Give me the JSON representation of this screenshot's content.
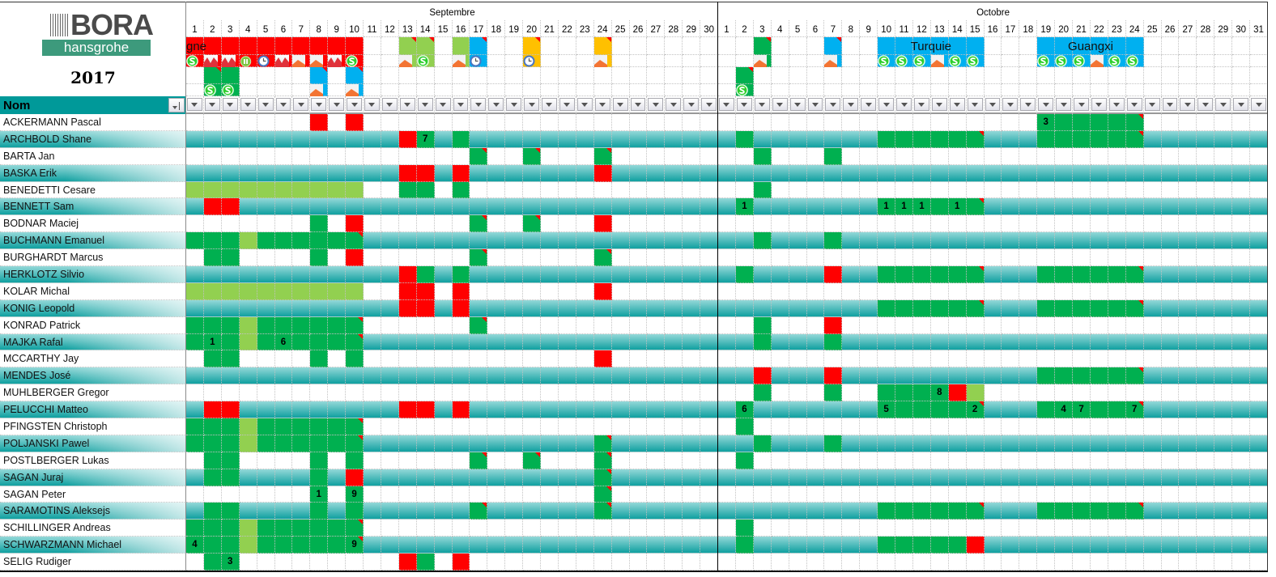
{
  "logo": {
    "brand": "BORA",
    "sub": "hansgrohe"
  },
  "year": "2017",
  "months": [
    {
      "key": "sep",
      "label": "Septembre",
      "days": 30
    },
    {
      "key": "oct",
      "label": "Octobre",
      "days": 31
    }
  ],
  "column_header": "Nom",
  "colors": {
    "G": "#00b050",
    "L": "#92d050",
    "R": "#ff0000",
    "B": "#00b0f0",
    "Y": "#ffc000"
  },
  "lanes": [
    {
      "type": "bar",
      "sep": [
        "R1-10",
        "l13-14",
        "L16",
        "b17",
        "y20",
        "y24"
      ],
      "oct": [
        "g3",
        "b7",
        "B10-15",
        "B19-24"
      ],
      "labels": [
        {
          "month": "sep",
          "from": 1,
          "to": 10,
          "text": "gne",
          "align": "left"
        },
        {
          "month": "oct",
          "from": 10,
          "to": 15,
          "text": "Turquie"
        },
        {
          "month": "oct",
          "from": 19,
          "to": 24,
          "text": "Guangxi"
        }
      ]
    },
    {
      "type": "icons",
      "sep": [
        "R1-10",
        "L13-14",
        "L16",
        "B17",
        "Y20",
        "Y24"
      ],
      "oct": [
        "G3",
        "B7",
        "B10-15",
        "B19-24"
      ],
      "icons": {
        "sep": {
          "1": "s-coin",
          "2": "mountain",
          "3": "mountain",
          "4": "pause",
          "5": "clock",
          "6": "mountain",
          "7": "hill",
          "8": "hill",
          "9": "mountain",
          "10": "s-coin",
          "13": "hill",
          "14": "s-coin",
          "16": "hill",
          "17": "clock",
          "20": "clock",
          "24": "hill"
        },
        "oct": {
          "3": "hill",
          "7": "hill",
          "10": "s-coin",
          "11": "s-coin",
          "12": "s-coin",
          "13": "hill",
          "14": "s-coin",
          "15": "s-coin",
          "19": "s-coin",
          "20": "s-coin",
          "21": "s-coin",
          "22": "hill",
          "23": "s-coin",
          "24": "s-coin"
        }
      }
    },
    {
      "type": "bar",
      "sep": [
        "g2",
        "G3",
        "b8",
        "b10"
      ],
      "oct": [
        "g2"
      ],
      "labels": []
    },
    {
      "type": "icons",
      "sep": [
        "G2-3",
        "B8",
        "B10"
      ],
      "oct": [
        "G2"
      ],
      "icons": {
        "sep": {
          "2": "s-coin",
          "3": "s-coin",
          "8": "hill",
          "10": "hill"
        },
        "oct": {
          "2": "s-coin"
        }
      }
    }
  ],
  "rows": [
    {
      "name": "ACKERMANN Pascal",
      "sep": [
        "R8",
        "R10"
      ],
      "oct": [
        "G19-23",
        "g24"
      ],
      "nums": {
        "oct": {
          "19": "3"
        }
      }
    },
    {
      "name": "ARCHBOLD Shane",
      "sep": [
        "R13",
        "G14",
        "G16"
      ],
      "oct": [
        "G2",
        "G10-14",
        "g15",
        "G19-23",
        "g24"
      ],
      "nums": {
        "sep": {
          "14": "7"
        }
      }
    },
    {
      "name": "BARTA Jan",
      "sep": [
        "g17",
        "g20",
        "g24"
      ],
      "oct": [
        "G3",
        "G7"
      ],
      "nums": {}
    },
    {
      "name": "BASKA Erik",
      "sep": [
        "R13-14",
        "R16",
        "R24"
      ],
      "oct": [],
      "nums": {}
    },
    {
      "name": "BENEDETTI Cesare",
      "sep": [
        "L1-10",
        "G13-14",
        "G16"
      ],
      "oct": [
        "G3"
      ],
      "nums": {}
    },
    {
      "name": "BENNETT Sam",
      "sep": [
        "R2-3"
      ],
      "oct": [
        "G2",
        "G10-14",
        "g15"
      ],
      "nums": {
        "oct": {
          "2": "1",
          "10": "1",
          "11": "1",
          "12": "1",
          "14": "1"
        }
      }
    },
    {
      "name": "BODNAR Maciej",
      "sep": [
        "G8",
        "R10",
        "g17",
        "g20",
        "R24"
      ],
      "oct": [],
      "nums": {}
    },
    {
      "name": "BUCHMANN Emanuel",
      "sep": [
        "G1-3",
        "L4",
        "G5-9",
        "g10"
      ],
      "oct": [
        "G3",
        "G7"
      ],
      "nums": {}
    },
    {
      "name": "BURGHARDT Marcus",
      "sep": [
        "G2-3",
        "G8",
        "R10",
        "g17",
        "g24"
      ],
      "oct": [],
      "nums": {}
    },
    {
      "name": "HERKLOTZ Silvio",
      "sep": [
        "R13",
        "G14",
        "G16"
      ],
      "oct": [
        "G2",
        "R7",
        "G10-14",
        "g15",
        "G19-23",
        "g24"
      ],
      "nums": {}
    },
    {
      "name": "KOLAR Michal",
      "sep": [
        "L1-10",
        "R13-14",
        "R16",
        "R24"
      ],
      "oct": [],
      "nums": {}
    },
    {
      "name": "KONIG Leopold",
      "sep": [
        "R13-14",
        "R16"
      ],
      "oct": [
        "G10-14",
        "g15",
        "G19-23",
        "g24"
      ],
      "nums": {}
    },
    {
      "name": "KONRAD Patrick",
      "sep": [
        "G1-3",
        "L4",
        "G5-9",
        "g10",
        "g17"
      ],
      "oct": [
        "G3",
        "R7"
      ],
      "nums": {}
    },
    {
      "name": "MAJKA Rafal",
      "sep": [
        "G1-3",
        "L4",
        "G5-9",
        "g10"
      ],
      "oct": [
        "G3",
        "G7"
      ],
      "nums": {
        "sep": {
          "2": "1",
          "6": "6"
        }
      }
    },
    {
      "name": "MCCARTHY Jay",
      "sep": [
        "G2-3",
        "G8",
        "G10",
        "R24"
      ],
      "oct": [],
      "nums": {}
    },
    {
      "name": "MENDES José",
      "sep": [],
      "oct": [
        "R3",
        "R7",
        "G19-23",
        "g24"
      ],
      "nums": {}
    },
    {
      "name": "MUHLBERGER Gregor",
      "sep": [],
      "oct": [
        "G3",
        "G7",
        "G10-13",
        "R14",
        "L15"
      ],
      "nums": {
        "oct": {
          "13": "8"
        }
      }
    },
    {
      "name": "PELUCCHI Matteo",
      "sep": [
        "R2-3",
        "R13-14",
        "R16"
      ],
      "oct": [
        "G2",
        "G10-14",
        "g15",
        "G19-23",
        "g24"
      ],
      "nums": {
        "oct": {
          "2": "6",
          "10": "5",
          "15": "2",
          "20": "4",
          "21": "7",
          "24": "7"
        }
      }
    },
    {
      "name": "PFINGSTEN Christoph",
      "sep": [
        "G1-3",
        "L4",
        "G5-9",
        "g10"
      ],
      "oct": [
        "G2"
      ],
      "nums": {}
    },
    {
      "name": "POLJANSKI Pawel",
      "sep": [
        "G1-3",
        "L4",
        "G5-9",
        "g10",
        "g24"
      ],
      "oct": [
        "G3",
        "G7"
      ],
      "nums": {}
    },
    {
      "name": "POSTLBERGER Lukas",
      "sep": [
        "G2-3",
        "G8",
        "G10",
        "g17",
        "g20",
        "g24"
      ],
      "oct": [
        "G2"
      ],
      "nums": {}
    },
    {
      "name": "SAGAN Juraj",
      "sep": [
        "G2-3",
        "G8",
        "R10",
        "g24"
      ],
      "oct": [],
      "nums": {}
    },
    {
      "name": "SAGAN Peter",
      "sep": [
        "G8",
        "G10",
        "g24"
      ],
      "oct": [],
      "nums": {
        "sep": {
          "8": "1",
          "10": "9"
        }
      }
    },
    {
      "name": "SARAMOTINS Aleksejs",
      "sep": [
        "G2-3",
        "G8",
        "G10",
        "g17",
        "g24"
      ],
      "oct": [
        "G10-14",
        "g15",
        "G19-23",
        "g24"
      ],
      "nums": {}
    },
    {
      "name": "SCHILLINGER Andreas",
      "sep": [
        "G1-3",
        "L4",
        "G5-9",
        "g10"
      ],
      "oct": [
        "G2"
      ],
      "nums": {}
    },
    {
      "name": "SCHWARZMANN Michael",
      "sep": [
        "G1-3",
        "L4",
        "G5-9",
        "g10"
      ],
      "oct": [
        "G2",
        "G10-14",
        "R15"
      ],
      "nums": {
        "sep": {
          "1": "4",
          "10": "9"
        }
      }
    },
    {
      "name": "SELIG Rudiger",
      "sep": [
        "G2-3",
        "R13",
        "G14",
        "R16"
      ],
      "oct": [],
      "nums": {
        "sep": {
          "3": "3"
        }
      }
    }
  ]
}
